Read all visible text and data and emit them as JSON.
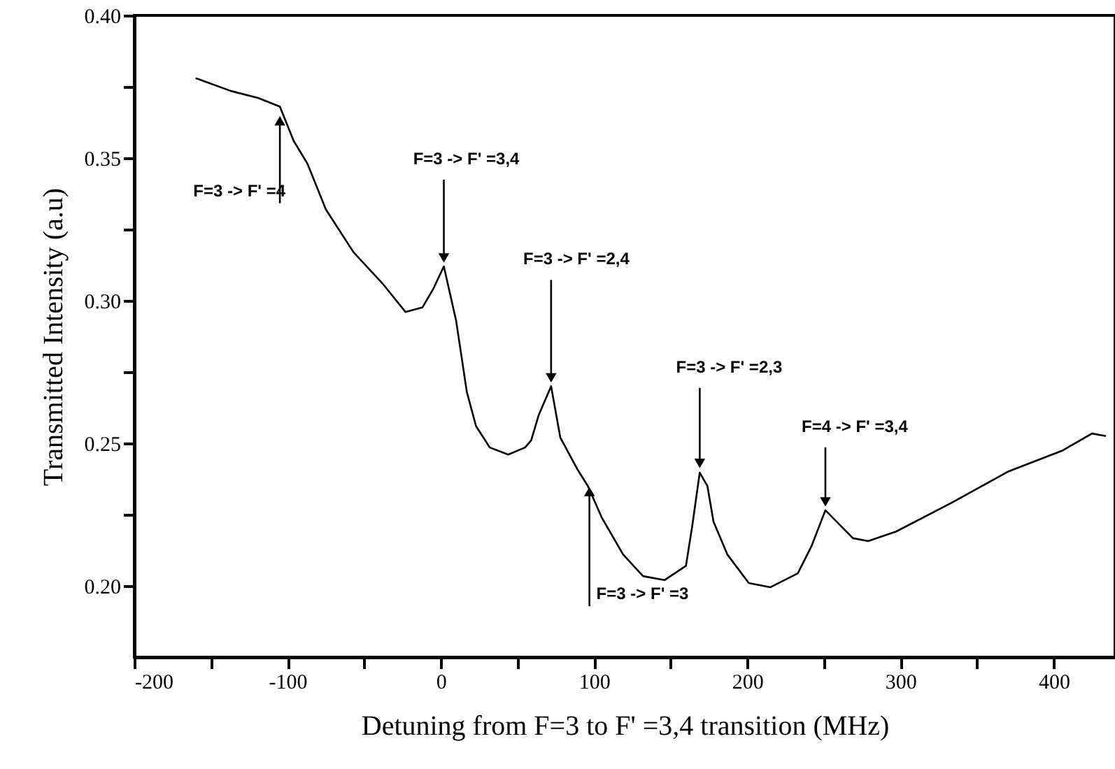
{
  "chart_data": {
    "type": "line",
    "xlabel": "Detuning from F=3 to F'  =3,4 transition (MHz)",
    "ylabel": "Transmitted Intensity (a.u)",
    "x": [
      -160,
      -137,
      -119,
      -105,
      -96,
      -87,
      -75,
      -57,
      -38,
      -23,
      -12,
      -5,
      2,
      10,
      17,
      23,
      32,
      44,
      55,
      59,
      64,
      72,
      78,
      89,
      96,
      105,
      119,
      132,
      146,
      160,
      164,
      169,
      174,
      178,
      187,
      201,
      215,
      233,
      242,
      251,
      260,
      269,
      279,
      297,
      333,
      370,
      406,
      425,
      434
    ],
    "series": [
      {
        "color": "#000000",
        "values": [
          0.378,
          0.3735,
          0.371,
          0.368,
          0.356,
          0.348,
          0.332,
          0.317,
          0.306,
          0.296,
          0.2976,
          0.304,
          0.312,
          0.293,
          0.268,
          0.256,
          0.2485,
          0.246,
          0.2485,
          0.251,
          0.26,
          0.27,
          0.252,
          0.241,
          0.235,
          0.224,
          0.211,
          0.2034,
          0.202,
          0.207,
          0.2206,
          0.2397,
          0.235,
          0.2225,
          0.211,
          0.201,
          0.1995,
          0.2044,
          0.214,
          0.2265,
          0.2216,
          0.2167,
          0.2157,
          0.219,
          0.229,
          0.24,
          0.2475,
          0.2534,
          0.2525
        ]
      }
    ],
    "xlim": [
      -200,
      440
    ],
    "ylim": [
      0.175,
      0.4
    ],
    "xticks": [
      -200,
      {
        "value": -150,
        "label": null
      },
      -100,
      {
        "value": -50,
        "label": null
      },
      0,
      {
        "value": 50,
        "label": null
      },
      100,
      {
        "value": 150,
        "label": null
      },
      200,
      {
        "value": 250,
        "label": null
      },
      300,
      {
        "value": 350,
        "label": null
      },
      400
    ],
    "yticks": [
      {
        "value": 0.2,
        "label": "0.20"
      },
      {
        "value": 0.225,
        "label": null
      },
      {
        "value": 0.25,
        "label": "0.25"
      },
      {
        "value": 0.275,
        "label": null
      },
      {
        "value": 0.3,
        "label": "0.30"
      },
      {
        "value": 0.325,
        "label": null
      },
      {
        "value": 0.35,
        "label": "0.35"
      },
      {
        "value": 0.375,
        "label": null
      },
      {
        "value": 0.4,
        "label": "0.40"
      }
    ],
    "annotations": [
      {
        "text": "F=3 -> F'  =4",
        "x": -105,
        "y": 0.366
      },
      {
        "text": "F=3 -> F'  =3,4",
        "x": 2,
        "y": 0.312
      },
      {
        "text": "F=3 -> F'  =2,4",
        "x": 72,
        "y": 0.27
      },
      {
        "text": "F=3 -> F'  =2,3",
        "x": 169,
        "y": 0.24
      },
      {
        "text": "F=4 -> F'  =3,4",
        "x": 251,
        "y": 0.2265
      },
      {
        "text": "F=3 -> F'  =3",
        "x": 97,
        "y": 0.236
      }
    ],
    "grid": false,
    "legend": false,
    "marker": "none",
    "line_style": "solid"
  }
}
